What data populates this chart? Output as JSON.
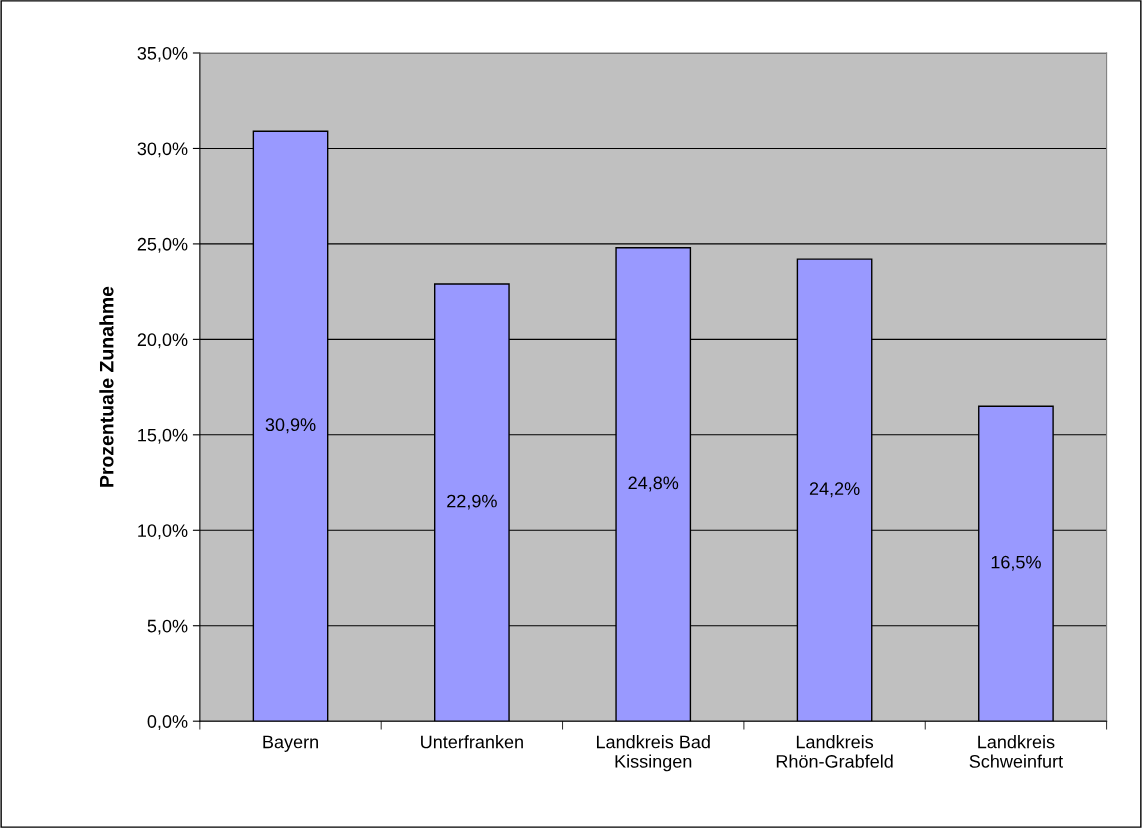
{
  "chart_data": {
    "type": "bar",
    "ylabel": "Prozentuale Zunahme",
    "categories": [
      "Bayern",
      "Unterfranken",
      "Landkreis Bad\nKissingen",
      "Landkreis\nRhön-Grabfeld",
      "Landkreis\nSchweinfurt"
    ],
    "values": [
      30.9,
      22.9,
      24.8,
      24.2,
      16.5
    ],
    "value_labels": [
      "30,9%",
      "22,9%",
      "24,8%",
      "24,2%",
      "16,5%"
    ],
    "color": "#9999ff",
    "ylim": [
      0,
      35
    ],
    "yticks": [
      {
        "value": 0,
        "label": "0,0%"
      },
      {
        "value": 5,
        "label": "5,0%"
      },
      {
        "value": 10,
        "label": "10,0%"
      },
      {
        "value": 15,
        "label": "15,0%"
      },
      {
        "value": 20,
        "label": "20,0%"
      },
      {
        "value": 25,
        "label": "25,0%"
      },
      {
        "value": 30,
        "label": "30,0%"
      },
      {
        "value": 35,
        "label": "35,0%"
      }
    ],
    "grid": "y",
    "legend": false
  }
}
